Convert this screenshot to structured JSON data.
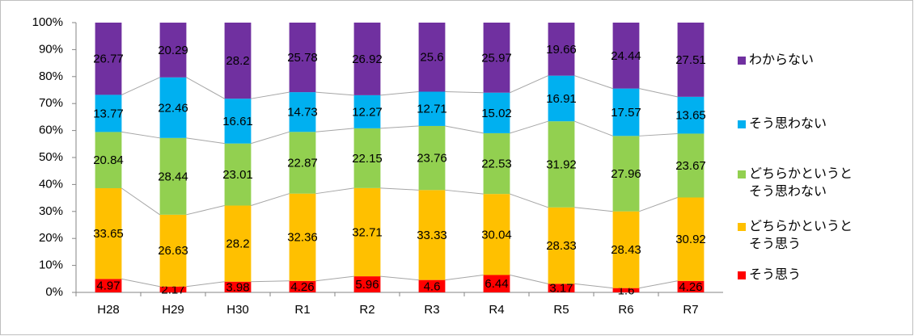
{
  "chart_data": {
    "type": "stacked_bar",
    "categories": [
      "H28",
      "H29",
      "H30",
      "R1",
      "R2",
      "R3",
      "R4",
      "R5",
      "R6",
      "R7"
    ],
    "series": [
      {
        "name": "そう思う",
        "color": "#ff0000",
        "values": [
          4.97,
          2.17,
          3.98,
          4.26,
          5.96,
          4.6,
          6.44,
          3.17,
          1.6,
          4.26
        ]
      },
      {
        "name": "どちらかというとそう思う",
        "color": "#ffc000",
        "values": [
          33.65,
          26.63,
          28.2,
          32.36,
          32.71,
          33.33,
          30.04,
          28.33,
          28.43,
          30.92
        ]
      },
      {
        "name": "どちらかというとそう思わない",
        "color": "#92d050",
        "values": [
          20.84,
          28.44,
          23.01,
          22.87,
          22.15,
          23.76,
          22.53,
          31.92,
          27.96,
          23.67
        ]
      },
      {
        "name": "そう思わない",
        "color": "#00b0f0",
        "values": [
          13.77,
          22.46,
          16.61,
          14.73,
          12.27,
          12.71,
          15.02,
          16.91,
          17.57,
          13.65
        ]
      },
      {
        "name": "わからない",
        "color": "#7030a0",
        "values": [
          26.77,
          20.29,
          28.2,
          25.78,
          26.92,
          25.6,
          25.97,
          19.66,
          24.44,
          27.51
        ]
      }
    ],
    "ylim": [
      0,
      100
    ],
    "yticks": [
      {
        "value": 0,
        "label": "0%"
      },
      {
        "value": 10,
        "label": "10%"
      },
      {
        "value": 20,
        "label": "20%"
      },
      {
        "value": 30,
        "label": "30%"
      },
      {
        "value": 40,
        "label": "40%"
      },
      {
        "value": 50,
        "label": "50%"
      },
      {
        "value": 60,
        "label": "60%"
      },
      {
        "value": 70,
        "label": "70%"
      },
      {
        "value": 80,
        "label": "80%"
      },
      {
        "value": 90,
        "label": "90%"
      },
      {
        "value": 100,
        "label": "100%"
      }
    ],
    "grid": false,
    "legend": "right"
  }
}
